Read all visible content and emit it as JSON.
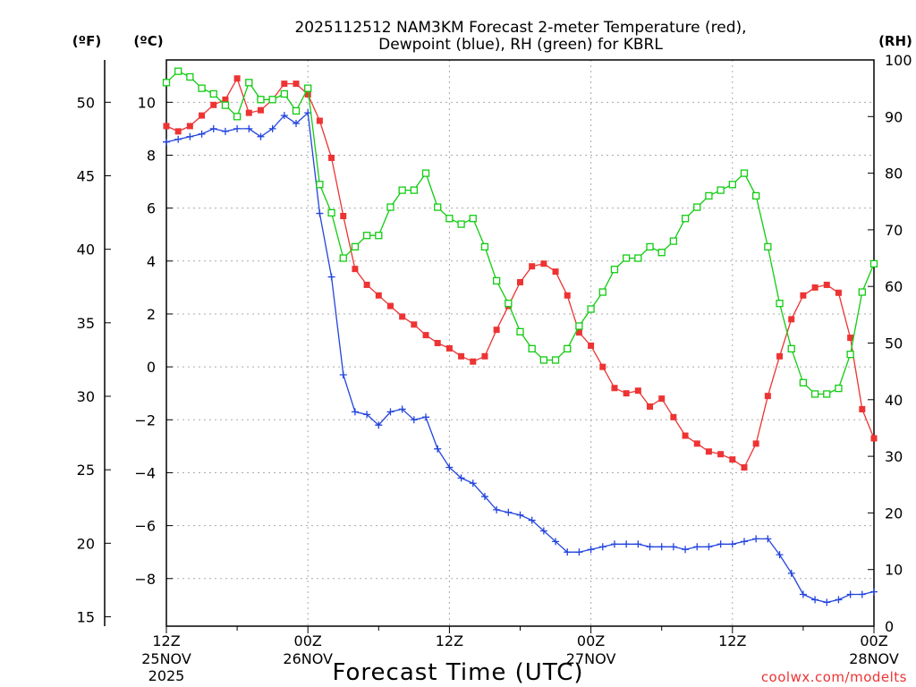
{
  "chart_data": {
    "type": "line",
    "title_line1": "2025112512 NAM3KM Forecast 2-meter Temperature (red),",
    "title_line2": "Dewpoint (blue), RH (green) for KBRL",
    "xlabel": "Forecast Time (UTC)",
    "watermark": "coolwx.com/modelts",
    "unit_f": "(ºF)",
    "unit_c": "(ºC)",
    "unit_rh": "(RH)",
    "x_ticks": [
      {
        "h": 0,
        "line1": "12Z",
        "line2": "25NOV",
        "line3": "2025"
      },
      {
        "h": 12,
        "line1": "00Z",
        "line2": "26NOV",
        "line3": ""
      },
      {
        "h": 24,
        "line1": "12Z",
        "line2": "",
        "line3": ""
      },
      {
        "h": 36,
        "line1": "00Z",
        "line2": "27NOV",
        "line3": ""
      },
      {
        "h": 48,
        "line1": "12Z",
        "line2": "",
        "line3": ""
      },
      {
        "h": 60,
        "line1": "00Z",
        "line2": "28NOV",
        "line3": ""
      }
    ],
    "celsius_range": [
      -9.8,
      11.6
    ],
    "celsius_ticks": [
      10,
      8,
      6,
      4,
      2,
      0,
      -2,
      -4,
      -6,
      -8
    ],
    "fahrenheit_ticks": [
      50,
      45,
      40,
      35,
      30,
      25,
      20,
      15
    ],
    "rh_range": [
      0,
      100
    ],
    "rh_ticks": [
      100,
      90,
      80,
      70,
      60,
      50,
      40,
      30,
      20,
      10,
      0
    ],
    "hours": [
      0,
      1,
      2,
      3,
      4,
      5,
      6,
      7,
      8,
      9,
      10,
      11,
      12,
      13,
      14,
      15,
      16,
      17,
      18,
      19,
      20,
      21,
      22,
      23,
      24,
      25,
      26,
      27,
      28,
      29,
      30,
      31,
      32,
      33,
      34,
      35,
      36,
      37,
      38,
      39,
      40,
      41,
      42,
      43,
      44,
      45,
      46,
      47,
      48,
      49,
      50,
      51,
      52,
      53,
      54,
      55,
      56,
      57,
      58,
      59,
      60
    ],
    "series": [
      {
        "name": "Temperature",
        "unit": "C",
        "color": "#ee3333",
        "marker": "filled-square",
        "values": [
          9.1,
          8.9,
          9.1,
          9.5,
          9.9,
          10.1,
          10.9,
          9.6,
          9.7,
          10.1,
          10.7,
          10.7,
          10.3,
          9.3,
          7.9,
          5.7,
          3.7,
          3.1,
          2.7,
          2.3,
          1.9,
          1.6,
          1.2,
          0.9,
          0.7,
          0.4,
          0.2,
          0.4,
          1.4,
          2.3,
          3.2,
          3.8,
          3.9,
          3.6,
          2.7,
          1.3,
          0.8,
          0.0,
          -0.8,
          -1.0,
          -0.9,
          -1.5,
          -1.2,
          -1.9,
          -2.6,
          -2.9,
          -3.2,
          -3.3,
          -3.5,
          -3.8,
          -2.9,
          -1.1,
          0.4,
          1.8,
          2.7,
          3.0,
          3.1,
          2.8,
          1.1,
          -1.6,
          -2.7
        ]
      },
      {
        "name": "Dewpoint",
        "unit": "C",
        "color": "#2244dd",
        "marker": "plus",
        "values": [
          8.5,
          8.6,
          8.7,
          8.8,
          9.0,
          8.9,
          9.0,
          9.0,
          8.7,
          9.0,
          9.5,
          9.2,
          9.6,
          5.8,
          3.4,
          -0.3,
          -1.7,
          -1.8,
          -2.2,
          -1.7,
          -1.6,
          -2.0,
          -1.9,
          -3.1,
          -3.8,
          -4.2,
          -4.4,
          -4.9,
          -5.4,
          -5.5,
          -5.6,
          -5.8,
          -6.2,
          -6.6,
          -7.0,
          -7.0,
          -6.9,
          -6.8,
          -6.7,
          -6.7,
          -6.7,
          -6.8,
          -6.8,
          -6.8,
          -6.9,
          -6.8,
          -6.8,
          -6.7,
          -6.7,
          -6.6,
          -6.5,
          -6.5,
          -7.1,
          -7.8,
          -8.6,
          -8.8,
          -8.9,
          -8.8,
          -8.6,
          -8.6,
          -8.5
        ]
      },
      {
        "name": "RH",
        "unit": "%",
        "color": "#11cc11",
        "marker": "open-square",
        "values": [
          96,
          98,
          97,
          95,
          94,
          92,
          90,
          96,
          93,
          93,
          94,
          91,
          95,
          78,
          73,
          65,
          67,
          69,
          69,
          74,
          77,
          77,
          80,
          74,
          72,
          71,
          72,
          67,
          61,
          57,
          52,
          49,
          47,
          47,
          49,
          53,
          56,
          59,
          63,
          65,
          65,
          67,
          66,
          68,
          72,
          74,
          76,
          77,
          78,
          80,
          76,
          67,
          57,
          49,
          43,
          41,
          41,
          42,
          48,
          59,
          64
        ]
      }
    ]
  }
}
